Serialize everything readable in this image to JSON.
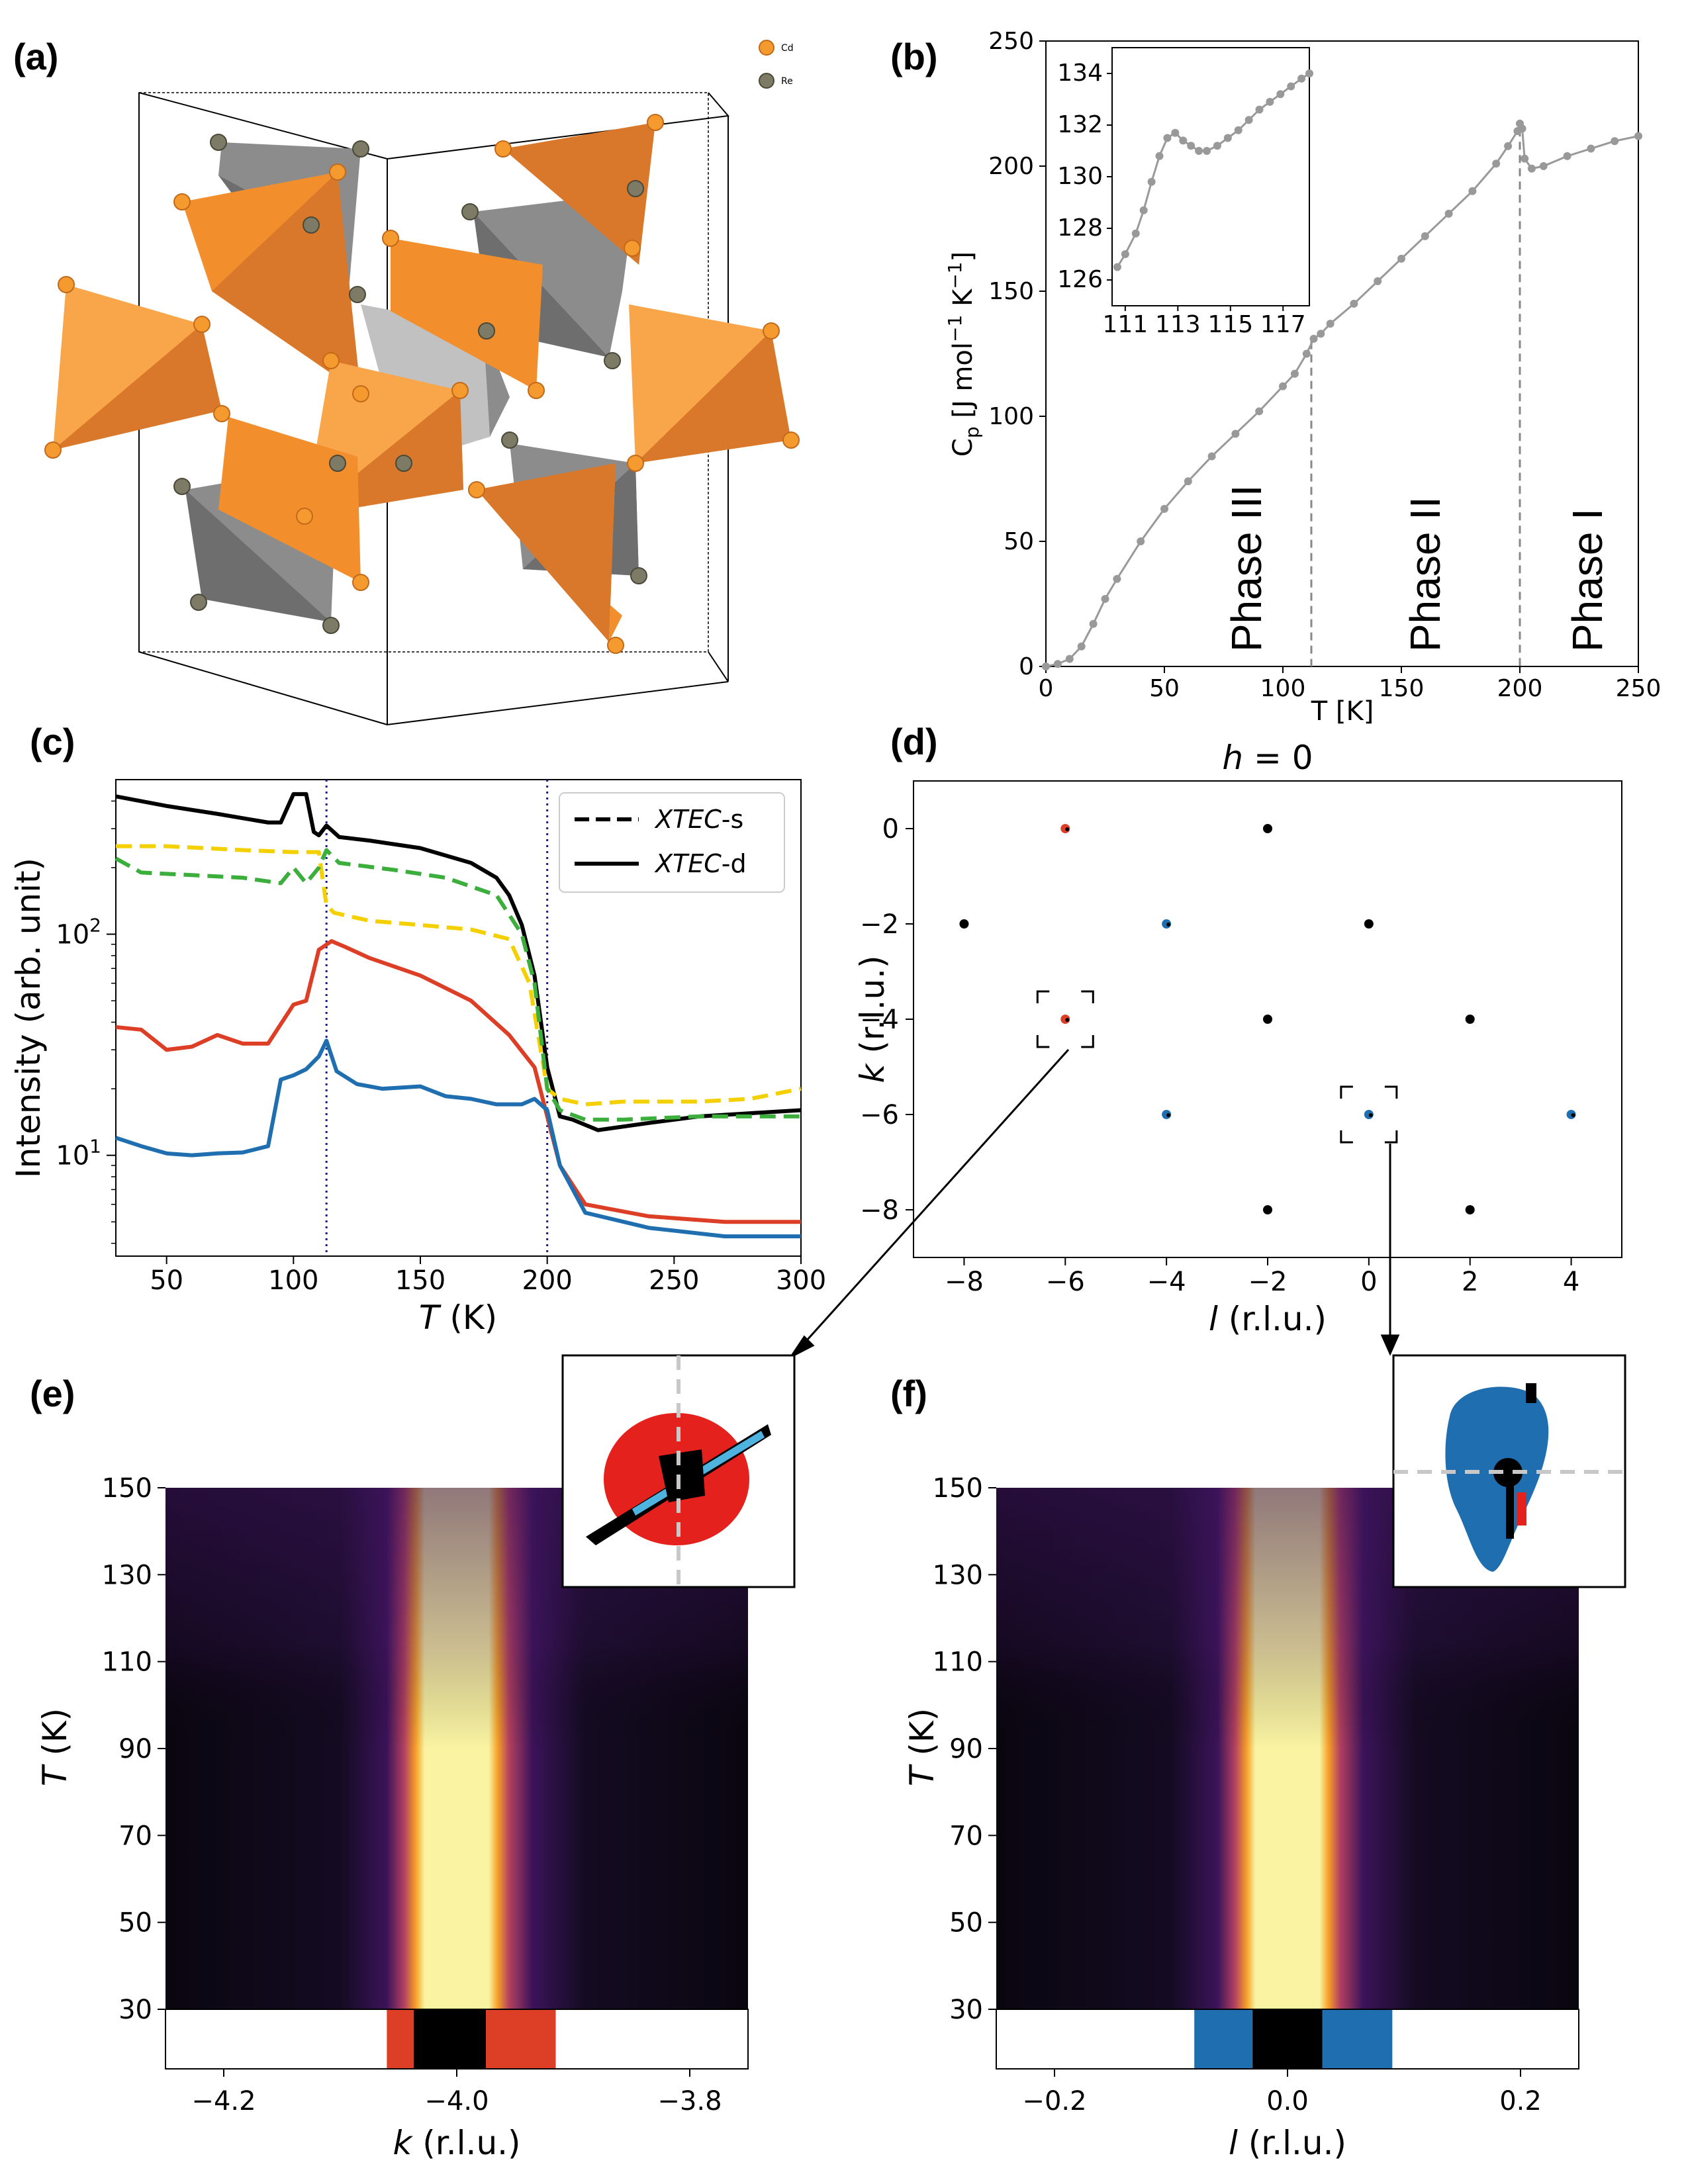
{
  "panels": {
    "a": "(a)",
    "b": "(b)",
    "c": "(c)",
    "d": "(d)",
    "e": "(e)",
    "f": "(f)"
  },
  "crystal": {
    "legend": [
      {
        "label": "Cd",
        "color": "#f28e2b"
      },
      {
        "label": "Re",
        "color": "#7d7a66"
      }
    ],
    "colors": {
      "cd_face": "#f28e2b",
      "cd_dark": "#d9782a",
      "re_face": "#8c8c8c",
      "re_dark": "#6e6e6e"
    }
  },
  "chart_data": [
    {
      "id": "b",
      "type": "line",
      "xlabel": "T [K]",
      "ylabel": "C_p [J mol^-1 K^-1]",
      "xlim": [
        0,
        250
      ],
      "ylim": [
        0,
        250
      ],
      "xticks": [
        0,
        50,
        100,
        150,
        200,
        250
      ],
      "yticks": [
        0,
        50,
        100,
        150,
        200,
        250
      ],
      "series": [
        {
          "x": [
            0,
            5,
            10,
            15,
            20,
            25,
            30,
            40,
            50,
            60,
            70,
            80,
            90,
            100,
            105,
            110,
            113,
            116,
            120,
            130,
            140,
            150,
            160,
            170,
            180,
            190,
            195,
            199,
            200,
            201,
            202,
            205,
            210,
            220,
            230,
            240,
            250
          ],
          "y": [
            0,
            1,
            3,
            8,
            17,
            27,
            35,
            50,
            63,
            74,
            84,
            93,
            102,
            112,
            117,
            125,
            131,
            133,
            137,
            145,
            154,
            163,
            172,
            181,
            190,
            201,
            208,
            214,
            217,
            215,
            203,
            199,
            200,
            204,
            207,
            210,
            212
          ]
        }
      ],
      "color": "#999999",
      "annotations": [
        "Phase III",
        "Phase II",
        "Phase I"
      ],
      "vlines": [
        112,
        200
      ],
      "inset": {
        "xlim": [
          110.5,
          118
        ],
        "ylim": [
          125,
          135
        ],
        "xticks": [
          111,
          113,
          115,
          117
        ],
        "yticks": [
          126,
          128,
          130,
          132,
          134
        ],
        "x": [
          110.7,
          111,
          111.4,
          111.7,
          112,
          112.3,
          112.6,
          112.9,
          113.2,
          113.5,
          113.8,
          114.1,
          114.5,
          114.9,
          115.3,
          115.7,
          116.1,
          116.5,
          116.9,
          117.3,
          117.7,
          118
        ],
        "y": [
          126.5,
          127,
          127.8,
          128.7,
          129.8,
          130.8,
          131.5,
          131.7,
          131.4,
          131.2,
          131.0,
          131.0,
          131.2,
          131.5,
          131.8,
          132.2,
          132.6,
          132.9,
          133.2,
          133.5,
          133.8,
          134.0
        ]
      }
    },
    {
      "id": "c",
      "type": "line",
      "xlabel": "T (K)",
      "ylabel": "Intensity (arb. unit)",
      "xlim": [
        30,
        300
      ],
      "ylim": [
        3.5,
        500
      ],
      "yscale": "log",
      "xticks": [
        50,
        100,
        150,
        200,
        250,
        300
      ],
      "yticks": [
        "10^1",
        "10^2"
      ],
      "vlines": [
        113,
        200
      ],
      "legend": [
        {
          "name": "XTEC-s",
          "style": "dashed"
        },
        {
          "name": "XTEC-d",
          "style": "solid"
        }
      ],
      "legend_position": "top-right",
      "series": [
        {
          "color": "#000000",
          "style": "solid",
          "x": [
            30,
            50,
            70,
            90,
            95,
            100,
            105,
            108,
            110,
            113,
            118,
            130,
            150,
            170,
            180,
            185,
            190,
            195,
            200,
            205,
            210,
            220,
            240,
            260,
            280,
            300
          ],
          "y": [
            420,
            380,
            350,
            320,
            320,
            430,
            430,
            290,
            280,
            310,
            275,
            265,
            245,
            210,
            180,
            150,
            110,
            65,
            25,
            15,
            14.5,
            13,
            14,
            15,
            15.5,
            16
          ]
        },
        {
          "color": "#f5d000",
          "style": "dashed",
          "x": [
            30,
            50,
            80,
            100,
            110,
            113,
            116,
            130,
            150,
            170,
            185,
            193,
            200,
            205,
            215,
            230,
            260,
            280,
            300
          ],
          "y": [
            250,
            250,
            240,
            235,
            235,
            135,
            125,
            115,
            110,
            105,
            95,
            60,
            20,
            18,
            17,
            17.5,
            17.5,
            18,
            20
          ]
        },
        {
          "color": "#3cae3c",
          "style": "dashed",
          "x": [
            30,
            40,
            60,
            80,
            95,
            100,
            105,
            110,
            113,
            118,
            140,
            160,
            180,
            190,
            195,
            200,
            205,
            215,
            230,
            260,
            300
          ],
          "y": [
            220,
            190,
            185,
            180,
            170,
            200,
            170,
            200,
            240,
            210,
            195,
            180,
            150,
            100,
            60,
            20,
            16,
            14.5,
            14.5,
            15,
            15
          ]
        },
        {
          "color": "#dc3e26",
          "style": "solid",
          "x": [
            30,
            40,
            50,
            60,
            70,
            80,
            90,
            100,
            105,
            110,
            115,
            120,
            130,
            150,
            170,
            185,
            195,
            200,
            205,
            215,
            240,
            270,
            300
          ],
          "y": [
            38,
            37,
            30,
            31,
            35,
            32,
            32,
            48,
            50,
            85,
            93,
            88,
            78,
            65,
            50,
            35,
            25,
            15,
            9,
            6,
            5.3,
            5,
            5
          ]
        },
        {
          "color": "#1f6fb0",
          "style": "solid",
          "x": [
            30,
            40,
            50,
            60,
            70,
            80,
            90,
            95,
            100,
            105,
            110,
            113,
            117,
            125,
            135,
            150,
            160,
            170,
            180,
            190,
            195,
            200,
            205,
            215,
            240,
            270,
            300
          ],
          "y": [
            12,
            11,
            10.2,
            10,
            10.2,
            10.3,
            11,
            22,
            23,
            24.5,
            28,
            33,
            24,
            21,
            20,
            20.5,
            18.5,
            18,
            17,
            17,
            18,
            16,
            9,
            5.5,
            4.7,
            4.3,
            4.3
          ]
        }
      ]
    },
    {
      "id": "d",
      "type": "scatter",
      "title": "h = 0",
      "xlabel": "l (r.l.u.)",
      "ylabel": "k (r.l.u.)",
      "xlim": [
        -9,
        5
      ],
      "ylim": [
        -9,
        1
      ],
      "xticks": [
        -8,
        -6,
        -4,
        -2,
        0,
        2,
        4
      ],
      "yticks": [
        0,
        -2,
        -4,
        -6,
        -8
      ],
      "points": [
        {
          "l": -6,
          "k": 0,
          "color": "#dc3e26"
        },
        {
          "l": -2,
          "k": 0,
          "color": "#000000"
        },
        {
          "l": -8,
          "k": -2,
          "color": "#000000"
        },
        {
          "l": -4,
          "k": -2,
          "color": "#1f6fb0"
        },
        {
          "l": 0,
          "k": -2,
          "color": "#000000"
        },
        {
          "l": -6,
          "k": -4,
          "color": "#dc3e26"
        },
        {
          "l": -2,
          "k": -4,
          "color": "#000000"
        },
        {
          "l": 2,
          "k": -4,
          "color": "#000000"
        },
        {
          "l": -4,
          "k": -6,
          "color": "#1f6fb0"
        },
        {
          "l": 0,
          "k": -6,
          "color": "#1f6fb0"
        },
        {
          "l": 4,
          "k": -6,
          "color": "#1f6fb0"
        },
        {
          "l": -2,
          "k": -8,
          "color": "#000000"
        },
        {
          "l": 2,
          "k": -8,
          "color": "#000000"
        }
      ],
      "boxes": [
        {
          "l": -6,
          "k": -4
        },
        {
          "l": 0,
          "k": -6
        }
      ]
    },
    {
      "id": "e",
      "type": "heatmap",
      "xlabel": "k (r.l.u.)",
      "ylabel": "T (K)",
      "xlim": [
        -4.25,
        -3.75
      ],
      "ylim": [
        30,
        150
      ],
      "xticks": [
        -4.2,
        -4.0,
        -3.8
      ],
      "yticks": [
        30,
        50,
        70,
        90,
        110,
        130,
        150
      ],
      "center": -4.0,
      "core_halfwidth": 0.035,
      "strip": [
        {
          "from": -4.25,
          "to": -4.06,
          "color": "#ffffff"
        },
        {
          "from": -4.06,
          "to": -4.037,
          "color": "#dc3e26"
        },
        {
          "from": -4.037,
          "to": -3.975,
          "color": "#000000"
        },
        {
          "from": -3.975,
          "to": -3.915,
          "color": "#dc3e26"
        },
        {
          "from": -3.915,
          "to": -3.75,
          "color": "#ffffff"
        }
      ]
    },
    {
      "id": "f",
      "type": "heatmap",
      "xlabel": "l (r.l.u.)",
      "ylabel": "T (K)",
      "xlim": [
        -0.25,
        0.25
      ],
      "ylim": [
        30,
        150
      ],
      "xticks": [
        -0.2,
        0.0,
        0.2
      ],
      "yticks": [
        30,
        50,
        70,
        90,
        110,
        130,
        150
      ],
      "center": 0.0,
      "core_halfwidth": 0.035,
      "strip": [
        {
          "from": -0.25,
          "to": -0.08,
          "color": "#ffffff"
        },
        {
          "from": -0.08,
          "to": -0.03,
          "color": "#1f6fb0"
        },
        {
          "from": -0.03,
          "to": 0.03,
          "color": "#000000"
        },
        {
          "from": 0.03,
          "to": 0.09,
          "color": "#1f6fb0"
        },
        {
          "from": 0.09,
          "to": 0.25,
          "color": "#ffffff"
        }
      ]
    }
  ]
}
